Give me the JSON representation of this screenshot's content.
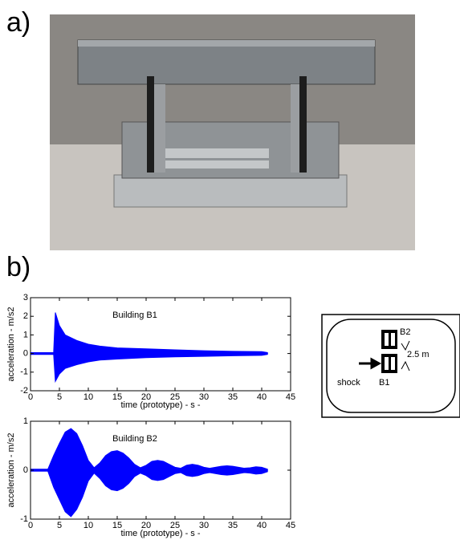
{
  "labels": {
    "a": "a)",
    "b": "b)"
  },
  "chart_data": [
    {
      "type": "area",
      "title": "Building B1",
      "xlabel": "time (prototype) - s -",
      "ylabel": "acceleration - m/s2",
      "x": [
        0,
        4,
        4.3,
        5,
        6,
        8,
        10,
        12,
        15,
        20,
        25,
        30,
        35,
        40,
        41
      ],
      "series": [
        {
          "color": "#0000ff",
          "values": [
            0.05,
            0.05,
            2.2,
            1.5,
            1.0,
            0.7,
            0.5,
            0.4,
            0.3,
            0.25,
            0.2,
            0.15,
            0.12,
            0.1,
            0.05
          ]
        },
        {
          "color": "#0000ff",
          "values": [
            -0.05,
            -0.05,
            -1.5,
            -1.1,
            -0.8,
            -0.6,
            -0.45,
            -0.35,
            -0.3,
            -0.22,
            -0.18,
            -0.15,
            -0.12,
            -0.1,
            -0.05
          ]
        }
      ],
      "xlim": [
        0,
        45
      ],
      "xticks": [
        0,
        5,
        10,
        15,
        20,
        25,
        30,
        35,
        40,
        45
      ],
      "ylim": [
        -2,
        3
      ],
      "yticks": [
        -2,
        -1,
        0,
        1,
        2,
        3
      ]
    },
    {
      "type": "area",
      "title": "Building B2",
      "xlabel": "time (prototype) - s -",
      "ylabel": "acceleration - m/s2",
      "x": [
        0,
        3,
        4,
        5,
        6,
        7,
        8,
        9,
        10,
        11,
        12,
        13,
        14,
        15,
        16,
        17,
        18,
        19,
        20,
        21,
        22,
        23,
        24,
        25,
        26,
        27,
        28,
        29,
        30,
        31,
        32,
        33,
        34,
        35,
        36,
        37,
        38,
        39,
        40,
        41
      ],
      "series": [
        {
          "color": "#0000ff",
          "values": [
            0.02,
            0.02,
            0.3,
            0.55,
            0.78,
            0.85,
            0.75,
            0.5,
            0.2,
            0.05,
            0.15,
            0.3,
            0.38,
            0.4,
            0.35,
            0.25,
            0.12,
            0.05,
            0.1,
            0.18,
            0.2,
            0.18,
            0.12,
            0.06,
            0.04,
            0.1,
            0.12,
            0.1,
            0.06,
            0.04,
            0.06,
            0.08,
            0.09,
            0.08,
            0.06,
            0.04,
            0.05,
            0.07,
            0.06,
            0.02
          ]
        },
        {
          "color": "#0000ff",
          "values": [
            -0.02,
            -0.02,
            -0.35,
            -0.6,
            -0.85,
            -0.95,
            -0.8,
            -0.55,
            -0.22,
            -0.06,
            -0.17,
            -0.32,
            -0.4,
            -0.42,
            -0.37,
            -0.27,
            -0.13,
            -0.06,
            -0.11,
            -0.19,
            -0.21,
            -0.19,
            -0.13,
            -0.07,
            -0.05,
            -0.11,
            -0.13,
            -0.11,
            -0.07,
            -0.05,
            -0.07,
            -0.09,
            -0.1,
            -0.09,
            -0.07,
            -0.05,
            -0.06,
            -0.08,
            -0.07,
            -0.03
          ]
        }
      ],
      "xlim": [
        0,
        45
      ],
      "xticks": [
        0,
        5,
        10,
        15,
        20,
        25,
        30,
        35,
        40,
        45
      ],
      "ylim": [
        -1,
        1
      ],
      "yticks": [
        -1,
        0,
        1
      ]
    }
  ],
  "diagram": {
    "top": "B2",
    "distance": "2.5 m",
    "input": "shock",
    "bottom": "B1"
  }
}
